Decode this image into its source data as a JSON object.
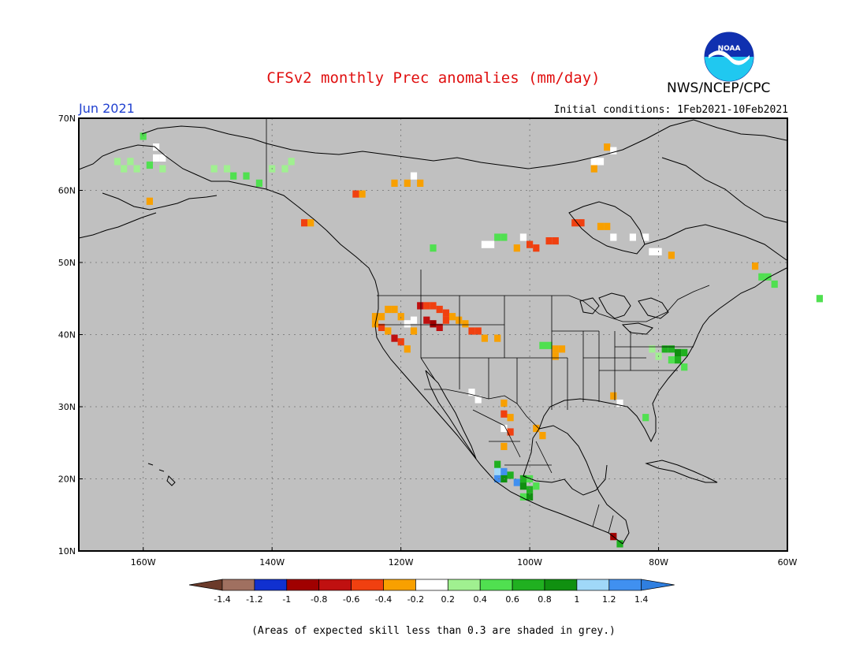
{
  "title": "CFSv2 monthly Prec anomalies (mm/day)",
  "agency": "NWS/NCEP/CPC",
  "logo_text": "NOAA",
  "month": "Jun 2021",
  "initial_conditions": "Initial conditions: 1Feb2021-10Feb2021",
  "footnote": "(Areas of expected skill less than 0.3 are shaded in grey.)",
  "colors": {
    "skill_mask": "#c0c0c0",
    "coast": "#000000",
    "grid": "#707070"
  },
  "map_extent": {
    "lon_min": -170,
    "lon_max": -60,
    "lat_min": 10,
    "lat_max": 70
  },
  "lat_ticks": [
    {
      "value": 70,
      "label": "70N"
    },
    {
      "value": 60,
      "label": "60N"
    },
    {
      "value": 50,
      "label": "50N"
    },
    {
      "value": 40,
      "label": "40N"
    },
    {
      "value": 30,
      "label": "30N"
    },
    {
      "value": 20,
      "label": "20N"
    },
    {
      "value": 10,
      "label": "10N"
    }
  ],
  "lon_ticks": [
    {
      "value": -160,
      "label": "160W"
    },
    {
      "value": -140,
      "label": "140W"
    },
    {
      "value": -120,
      "label": "120W"
    },
    {
      "value": -100,
      "label": "100W"
    },
    {
      "value": -80,
      "label": "80W"
    },
    {
      "value": -60,
      "label": "60W"
    }
  ],
  "colorbar": {
    "labels": [
      "-1.4",
      "-1.2",
      "-1",
      "-0.8",
      "-0.6",
      "-0.4",
      "-0.2",
      "0.2",
      "0.4",
      "0.6",
      "0.8",
      "1",
      "1.2",
      "1.4"
    ],
    "below_color": "#6b3a2a",
    "above_color": "#2f7fe0",
    "bin_colors": [
      "#a07060",
      "#1030d0",
      "#a00000",
      "#c01010",
      "#f04010",
      "#f8a000",
      "#ffffff",
      "#a0f090",
      "#50e050",
      "#20b020",
      "#109010",
      "#a0d8f8",
      "#4090f0"
    ]
  },
  "anomaly_cells": [
    {
      "region": "Alaska N",
      "lon": -160,
      "lat": 67.5,
      "bin": 8
    },
    {
      "region": "Alaska NW",
      "lon": -164,
      "lat": 64.0,
      "bin": 7
    },
    {
      "region": "Alaska NW",
      "lon": -163,
      "lat": 63.0,
      "bin": 7
    },
    {
      "region": "Alaska W",
      "lon": -162,
      "lat": 64.0,
      "bin": 7
    },
    {
      "region": "Alaska W",
      "lon": -161,
      "lat": 63.0,
      "bin": 7
    },
    {
      "region": "Alaska W",
      "lon": -158,
      "lat": 64.5,
      "bin": 6
    },
    {
      "region": "Alaska W",
      "lon": -157,
      "lat": 64.5,
      "bin": 6
    },
    {
      "region": "Alaska W",
      "lon": -159,
      "lat": 63.5,
      "bin": 8
    },
    {
      "region": "Alaska W",
      "lon": -157,
      "lat": 63.0,
      "bin": 7
    },
    {
      "region": "Alaska W",
      "lon": -158,
      "lat": 66.0,
      "bin": 6
    },
    {
      "region": "Alaska SW",
      "lon": -159,
      "lat": 58.5,
      "bin": 5
    },
    {
      "region": "Alaska interior",
      "lon": -149,
      "lat": 63.0,
      "bin": 7
    },
    {
      "region": "Alaska interior",
      "lon": -147,
      "lat": 63.0,
      "bin": 7
    },
    {
      "region": "Alaska interior",
      "lon": -146,
      "lat": 62.0,
      "bin": 8
    },
    {
      "region": "Alaska interior",
      "lon": -144,
      "lat": 62.0,
      "bin": 8
    },
    {
      "region": "Alaska interior",
      "lon": -142,
      "lat": 61.0,
      "bin": 8
    },
    {
      "region": "Yukon",
      "lon": -140,
      "lat": 63.0,
      "bin": 7
    },
    {
      "region": "Yukon",
      "lon": -138,
      "lat": 63.0,
      "bin": 7
    },
    {
      "region": "Yukon",
      "lon": -137,
      "lat": 64.0,
      "bin": 7
    },
    {
      "region": "BC coast",
      "lon": -135,
      "lat": 55.5,
      "bin": 4
    },
    {
      "region": "BC coast",
      "lon": -134,
      "lat": 55.5,
      "bin": 5
    },
    {
      "region": "NWT",
      "lon": -127,
      "lat": 59.5,
      "bin": 4
    },
    {
      "region": "NWT",
      "lon": -126,
      "lat": 59.5,
      "bin": 5
    },
    {
      "region": "NWT",
      "lon": -121,
      "lat": 61.0,
      "bin": 5
    },
    {
      "region": "NWT",
      "lon": -119,
      "lat": 61.0,
      "bin": 5
    },
    {
      "region": "NWT",
      "lon": -117,
      "lat": 61.0,
      "bin": 5
    },
    {
      "region": "NWT",
      "lon": -118,
      "lat": 62.0,
      "bin": 6
    },
    {
      "region": "Alberta",
      "lon": -115,
      "lat": 52.0,
      "bin": 8
    },
    {
      "region": "Hudson Bay",
      "lon": -93,
      "lat": 55.5,
      "bin": 4
    },
    {
      "region": "Hudson Bay",
      "lon": -92,
      "lat": 55.5,
      "bin": 4
    },
    {
      "region": "Hudson Bay",
      "lon": -89,
      "lat": 55.0,
      "bin": 5
    },
    {
      "region": "Hudson Bay",
      "lon": -88,
      "lat": 55.0,
      "bin": 5
    },
    {
      "region": "Hudson Bay",
      "lon": -87,
      "lat": 53.5,
      "bin": 6
    },
    {
      "region": "Hudson Bay",
      "lon": -84,
      "lat": 53.5,
      "bin": 6
    },
    {
      "region": "Hudson Bay",
      "lon": -82,
      "lat": 53.5,
      "bin": 6
    },
    {
      "region": "Ontario",
      "lon": -101,
      "lat": 53.5,
      "bin": 6
    },
    {
      "region": "Ontario",
      "lon": -100,
      "lat": 52.5,
      "bin": 4
    },
    {
      "region": "Ontario",
      "lon": -97,
      "lat": 53.0,
      "bin": 4
    },
    {
      "region": "Ontario",
      "lon": -96,
      "lat": 53.0,
      "bin": 4
    },
    {
      "region": "Ontario",
      "lon": -99,
      "lat": 52.0,
      "bin": 4
    },
    {
      "region": "Manitoba",
      "lon": -105,
      "lat": 53.5,
      "bin": 8
    },
    {
      "region": "Manitoba",
      "lon": -104,
      "lat": 53.5,
      "bin": 8
    },
    {
      "region": "Manitoba",
      "lon": -107,
      "lat": 52.5,
      "bin": 6
    },
    {
      "region": "Manitoba",
      "lon": -106,
      "lat": 52.5,
      "bin": 6
    },
    {
      "region": "Manitoba",
      "lon": -102,
      "lat": 52.0,
      "bin": 5
    },
    {
      "region": "Quebec",
      "lon": -81,
      "lat": 51.5,
      "bin": 6
    },
    {
      "region": "Quebec",
      "lon": -80,
      "lat": 51.5,
      "bin": 6
    },
    {
      "region": "Quebec",
      "lon": -78,
      "lat": 51.0,
      "bin": 5
    },
    {
      "region": "Baffin",
      "lon": -90,
      "lat": 64.0,
      "bin": 6
    },
    {
      "region": "Baffin",
      "lon": -89,
      "lat": 64.0,
      "bin": 6
    },
    {
      "region": "Baffin",
      "lon": -90,
      "lat": 63.0,
      "bin": 5
    },
    {
      "region": "Baffin",
      "lon": -88,
      "lat": 66.0,
      "bin": 5
    },
    {
      "region": "Baffin",
      "lon": -87,
      "lat": 65.5,
      "bin": 6
    },
    {
      "region": "Labrador",
      "lon": -65,
      "lat": 49.5,
      "bin": 5
    },
    {
      "region": "Labrador",
      "lon": -64,
      "lat": 48.0,
      "bin": 8
    },
    {
      "region": "Labrador",
      "lon": -63,
      "lat": 48.0,
      "bin": 8
    },
    {
      "region": "Labrador",
      "lon": -62,
      "lat": 47.0,
      "bin": 8
    },
    {
      "region": "Newfoundland",
      "lon": -55,
      "lat": 45.0,
      "bin": 8
    },
    {
      "region": "CA/NV",
      "lon": -124,
      "lat": 42.5,
      "bin": 5
    },
    {
      "region": "CA/NV",
      "lon": -123,
      "lat": 42.5,
      "bin": 5
    },
    {
      "region": "CA/NV",
      "lon": -122,
      "lat": 43.5,
      "bin": 5
    },
    {
      "region": "CA/NV",
      "lon": -121,
      "lat": 43.5,
      "bin": 5
    },
    {
      "region": "CA/NV",
      "lon": -120,
      "lat": 42.5,
      "bin": 5
    },
    {
      "region": "CA/NV",
      "lon": -124,
      "lat": 41.5,
      "bin": 5
    },
    {
      "region": "CA/NV",
      "lon": -123,
      "lat": 41.0,
      "bin": 4
    },
    {
      "region": "CA/NV",
      "lon": -122,
      "lat": 40.5,
      "bin": 5
    },
    {
      "region": "CA/NV",
      "lon": -121,
      "lat": 39.5,
      "bin": 3
    },
    {
      "region": "CA/NV",
      "lon": -120,
      "lat": 39.0,
      "bin": 4
    },
    {
      "region": "CA/NV",
      "lon": -119,
      "lat": 41.5,
      "bin": 6
    },
    {
      "region": "CA/NV",
      "lon": -118,
      "lat": 42.0,
      "bin": 6
    },
    {
      "region": "CA/NV",
      "lon": -119,
      "lat": 38.0,
      "bin": 5
    },
    {
      "region": "CA/NV",
      "lon": -118,
      "lat": 40.5,
      "bin": 5
    },
    {
      "region": "ID/UT",
      "lon": -117,
      "lat": 44.0,
      "bin": 3
    },
    {
      "region": "ID/UT",
      "lon": -116,
      "lat": 44.0,
      "bin": 4
    },
    {
      "region": "ID/UT",
      "lon": -115,
      "lat": 44.0,
      "bin": 4
    },
    {
      "region": "ID/UT",
      "lon": -114,
      "lat": 43.5,
      "bin": 4
    },
    {
      "region": "ID/UT",
      "lon": -113,
      "lat": 43.0,
      "bin": 4
    },
    {
      "region": "ID/UT",
      "lon": -116,
      "lat": 42.0,
      "bin": 3
    },
    {
      "region": "ID/UT",
      "lon": -115,
      "lat": 41.5,
      "bin": 2
    },
    {
      "region": "ID/UT",
      "lon": -114,
      "lat": 41.0,
      "bin": 3
    },
    {
      "region": "ID/UT",
      "lon": -113,
      "lat": 42.0,
      "bin": 4
    },
    {
      "region": "ID/UT",
      "lon": -112,
      "lat": 42.5,
      "bin": 5
    },
    {
      "region": "ID/UT",
      "lon": -111,
      "lat": 42.0,
      "bin": 5
    },
    {
      "region": "ID/UT",
      "lon": -110,
      "lat": 41.5,
      "bin": 5
    },
    {
      "region": "ID/UT",
      "lon": -109,
      "lat": 40.5,
      "bin": 4
    },
    {
      "region": "ID/UT",
      "lon": -108,
      "lat": 40.5,
      "bin": 4
    },
    {
      "region": "Colorado",
      "lon": -107,
      "lat": 39.5,
      "bin": 5
    },
    {
      "region": "Colorado",
      "lon": -105,
      "lat": 39.5,
      "bin": 5
    },
    {
      "region": "Kansas",
      "lon": -98,
      "lat": 38.5,
      "bin": 8
    },
    {
      "region": "Kansas",
      "lon": -97,
      "lat": 38.5,
      "bin": 8
    },
    {
      "region": "Kansas",
      "lon": -96,
      "lat": 38.0,
      "bin": 5
    },
    {
      "region": "Kansas",
      "lon": -95,
      "lat": 38.0,
      "bin": 5
    },
    {
      "region": "Kansas",
      "lon": -96,
      "lat": 37.0,
      "bin": 5
    },
    {
      "region": "Mid-Atlantic",
      "lon": -79,
      "lat": 38.0,
      "bin": 9
    },
    {
      "region": "Mid-Atlantic",
      "lon": -78,
      "lat": 38.0,
      "bin": 9
    },
    {
      "region": "Mid-Atlantic",
      "lon": -77,
      "lat": 37.5,
      "bin": 10
    },
    {
      "region": "Mid-Atlantic",
      "lon": -76,
      "lat": 37.5,
      "bin": 9
    },
    {
      "region": "Mid-Atlantic",
      "lon": -78,
      "lat": 36.5,
      "bin": 8
    },
    {
      "region": "Mid-Atlantic",
      "lon": -77,
      "lat": 36.5,
      "bin": 9
    },
    {
      "region": "Mid-Atlantic",
      "lon": -76,
      "lat": 35.5,
      "bin": 8
    },
    {
      "region": "Mid-Atlantic",
      "lon": -80,
      "lat": 37.0,
      "bin": 7
    },
    {
      "region": "Mid-Atlantic",
      "lon": -81,
      "lat": 38.0,
      "bin": 7
    },
    {
      "region": "Florida",
      "lon": -82,
      "lat": 28.5,
      "bin": 8
    },
    {
      "region": "Gulf",
      "lon": -87,
      "lat": 31.5,
      "bin": 5
    },
    {
      "region": "Gulf",
      "lon": -86,
      "lat": 30.5,
      "bin": 6
    },
    {
      "region": "Texas",
      "lon": -99,
      "lat": 27.0,
      "bin": 5
    },
    {
      "region": "Texas",
      "lon": -98,
      "lat": 26.0,
      "bin": 5
    },
    {
      "region": "Texas",
      "lon": -109,
      "lat": 32.0,
      "bin": 6
    },
    {
      "region": "Texas",
      "lon": -108,
      "lat": 31.0,
      "bin": 6
    },
    {
      "region": "Mexico W",
      "lon": -104,
      "lat": 30.5,
      "bin": 5
    },
    {
      "region": "Mexico W",
      "lon": -104,
      "lat": 29.0,
      "bin": 4
    },
    {
      "region": "Mexico W",
      "lon": -103,
      "lat": 28.5,
      "bin": 5
    },
    {
      "region": "Mexico W",
      "lon": -104,
      "lat": 27.0,
      "bin": 6
    },
    {
      "region": "Mexico W",
      "lon": -103,
      "lat": 26.5,
      "bin": 4
    },
    {
      "region": "Mexico W",
      "lon": -104,
      "lat": 24.5,
      "bin": 5
    },
    {
      "region": "Mexico S",
      "lon": -105,
      "lat": 22.0,
      "bin": 9
    },
    {
      "region": "Mexico S",
      "lon": -105,
      "lat": 21.0,
      "bin": 11
    },
    {
      "region": "Mexico S",
      "lon": -104,
      "lat": 21.0,
      "bin": 12
    },
    {
      "region": "Mexico S",
      "lon": -105,
      "lat": 20.0,
      "bin": 12
    },
    {
      "region": "Mexico S",
      "lon": -104,
      "lat": 20.0,
      "bin": 10
    },
    {
      "region": "Mexico S",
      "lon": -103,
      "lat": 20.5,
      "bin": 9
    },
    {
      "region": "Mexico S",
      "lon": -102,
      "lat": 19.5,
      "bin": 12
    },
    {
      "region": "Mexico S",
      "lon": -101,
      "lat": 20.0,
      "bin": 9
    },
    {
      "region": "Mexico S",
      "lon": -100,
      "lat": 20.0,
      "bin": 8
    },
    {
      "region": "Mexico S",
      "lon": -101,
      "lat": 19.0,
      "bin": 10
    },
    {
      "region": "Mexico S",
      "lon": -100,
      "lat": 18.5,
      "bin": 9
    },
    {
      "region": "Mexico S",
      "lon": -99,
      "lat": 19.0,
      "bin": 8
    },
    {
      "region": "Mexico S",
      "lon": -100,
      "lat": 17.5,
      "bin": 10
    },
    {
      "region": "Mexico S",
      "lon": -101,
      "lat": 17.5,
      "bin": 8
    },
    {
      "region": "Central America",
      "lon": -87,
      "lat": 12.0,
      "bin": 2
    },
    {
      "region": "Central America",
      "lon": -86,
      "lat": 11.0,
      "bin": 9
    }
  ]
}
